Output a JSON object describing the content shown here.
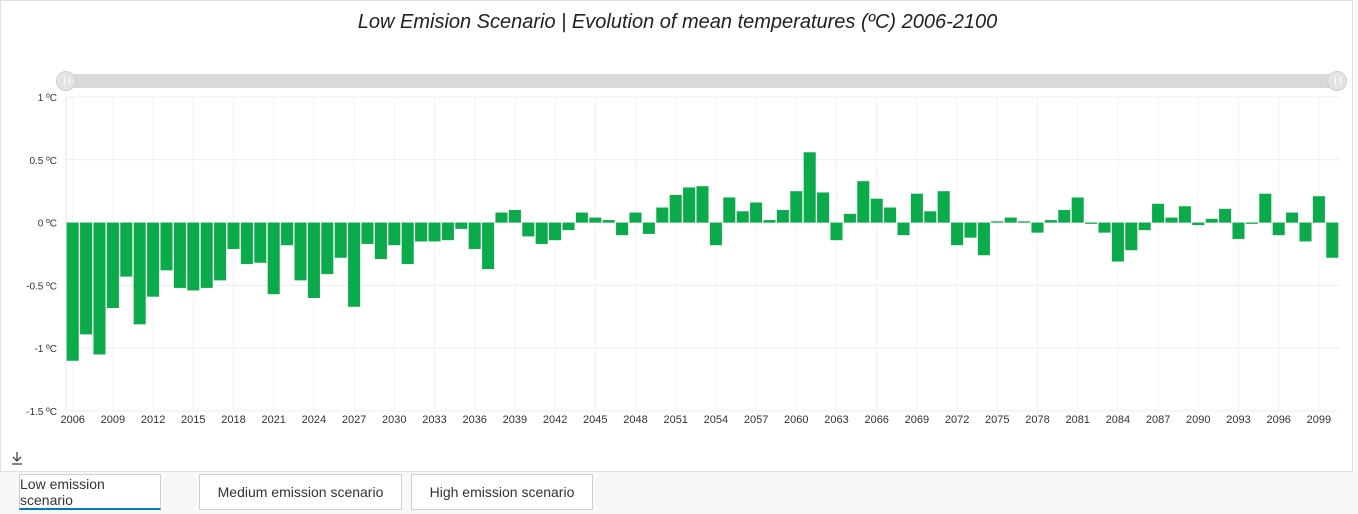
{
  "title": "Low Emision Scenario | Evolution of mean temperatures (ºC) 2006-2100",
  "colors": {
    "bar": "#0bab4b",
    "grid": "#ececec",
    "tab_active": "#0079c1"
  },
  "icons": {
    "download": "download-icon"
  },
  "tabs": [
    {
      "label": "Low emission scenario",
      "active": true
    },
    {
      "label": "Medium emission scenario",
      "active": false
    },
    {
      "label": "High emission scenario",
      "active": false
    }
  ],
  "chart_data": {
    "type": "bar",
    "title": "Low Emision Scenario | Evolution of mean temperatures (ºC) 2006-2100",
    "xlabel": "",
    "ylabel": "",
    "ylim": [
      -1.5,
      1
    ],
    "y_ticks": [
      "-1.5 ºC",
      "-1 ºC",
      "-0.5 ºC",
      "0 ºC",
      "0.5 ºC",
      "1 ºC"
    ],
    "y_tick_values": [
      -1.5,
      -1,
      -0.5,
      0,
      0.5,
      1
    ],
    "x_tick_labels": [
      "2006",
      "2009",
      "2012",
      "2015",
      "2018",
      "2021",
      "2024",
      "2027",
      "2030",
      "2033",
      "2036",
      "2039",
      "2042",
      "2045",
      "2048",
      "2051",
      "2054",
      "2057",
      "2060",
      "2063",
      "2066",
      "2069",
      "2072",
      "2075",
      "2078",
      "2081",
      "2084",
      "2087",
      "2090",
      "2093",
      "2096",
      "2099"
    ],
    "categories": [
      "2006",
      "2007",
      "2008",
      "2009",
      "2010",
      "2011",
      "2012",
      "2013",
      "2014",
      "2015",
      "2016",
      "2017",
      "2018",
      "2019",
      "2020",
      "2021",
      "2022",
      "2023",
      "2024",
      "2025",
      "2026",
      "2027",
      "2028",
      "2029",
      "2030",
      "2031",
      "2032",
      "2033",
      "2034",
      "2035",
      "2036",
      "2037",
      "2038",
      "2039",
      "2040",
      "2041",
      "2042",
      "2043",
      "2044",
      "2045",
      "2046",
      "2047",
      "2048",
      "2049",
      "2050",
      "2051",
      "2052",
      "2053",
      "2054",
      "2055",
      "2056",
      "2057",
      "2058",
      "2059",
      "2060",
      "2061",
      "2062",
      "2063",
      "2064",
      "2065",
      "2066",
      "2067",
      "2068",
      "2069",
      "2070",
      "2071",
      "2072",
      "2073",
      "2074",
      "2075",
      "2076",
      "2077",
      "2078",
      "2079",
      "2080",
      "2081",
      "2082",
      "2083",
      "2084",
      "2085",
      "2086",
      "2087",
      "2088",
      "2089",
      "2090",
      "2091",
      "2092",
      "2093",
      "2094",
      "2095",
      "2096",
      "2097",
      "2098",
      "2099",
      "2100"
    ],
    "values": [
      -1.1,
      -0.89,
      -1.05,
      -0.68,
      -0.43,
      -0.81,
      -0.59,
      -0.38,
      -0.52,
      -0.54,
      -0.52,
      -0.46,
      -0.21,
      -0.33,
      -0.32,
      -0.57,
      -0.18,
      -0.46,
      -0.6,
      -0.41,
      -0.28,
      -0.67,
      -0.17,
      -0.29,
      -0.18,
      -0.33,
      -0.15,
      -0.15,
      -0.14,
      -0.05,
      -0.21,
      -0.37,
      0.08,
      0.1,
      -0.11,
      -0.17,
      -0.14,
      -0.06,
      0.08,
      0.04,
      0.02,
      -0.1,
      0.08,
      -0.09,
      0.12,
      0.22,
      0.28,
      0.29,
      -0.18,
      0.2,
      0.09,
      0.16,
      0.02,
      0.1,
      0.25,
      0.56,
      0.24,
      -0.14,
      0.07,
      0.33,
      0.19,
      0.12,
      -0.1,
      0.23,
      0.09,
      0.25,
      -0.18,
      -0.12,
      -0.26,
      0.01,
      0.04,
      0.01,
      -0.08,
      0.02,
      0.1,
      0.2,
      -0.01,
      -0.08,
      -0.31,
      -0.22,
      -0.06,
      0.15,
      0.04,
      0.13,
      -0.02,
      0.03,
      0.11,
      -0.13,
      -0.01,
      0.23,
      -0.1,
      0.08,
      -0.15,
      0.21,
      -0.28
    ]
  }
}
